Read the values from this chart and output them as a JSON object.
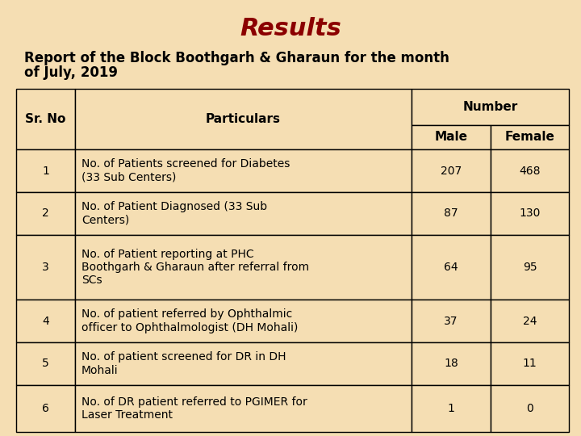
{
  "title": "Results",
  "subtitle_line1": "Report of the Block Boothgarh & Gharaun for the month",
  "subtitle_line2": "of July, 2019",
  "bg_color": "#F5DEB3",
  "title_color": "#8B0000",
  "text_color": "#000000",
  "border_color": "#000000",
  "cell_bg": "#F5DEB3",
  "rows": [
    [
      "1",
      "No. of Patients screened for Diabetes\n(33 Sub Centers)",
      "207",
      "468"
    ],
    [
      "2",
      "No. of Patient Diagnosed (33 Sub\nCenters)",
      "87",
      "130"
    ],
    [
      "3",
      "No. of Patient reporting at PHC\nBoothgarh & Gharaun after referral from\nSCs",
      "64",
      "95"
    ],
    [
      "4",
      "No. of patient referred by Ophthalmic\nofficer to Ophthalmologist (DH Mohali)",
      "37",
      "24"
    ],
    [
      "5",
      "No. of patient screened for DR in DH\nMohali",
      "18",
      "11"
    ],
    [
      "6",
      "No. of DR patient referred to PGIMER for\nLaser Treatment",
      "1",
      "0"
    ]
  ],
  "title_fontsize": 22,
  "subtitle_fontsize": 12,
  "header_fontsize": 11,
  "cell_fontsize": 10
}
